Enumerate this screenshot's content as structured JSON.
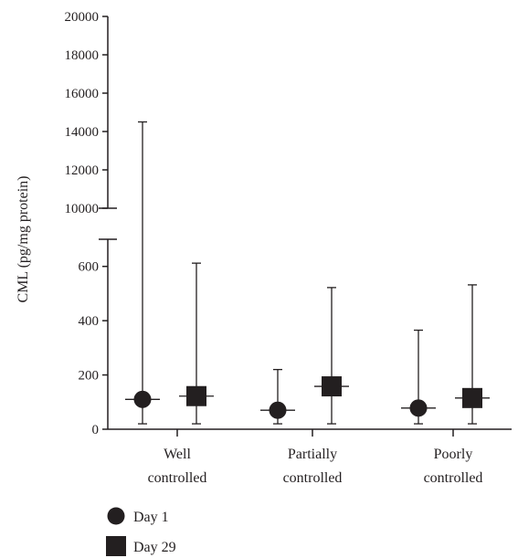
{
  "chart_data": {
    "type": "scatter",
    "title": "",
    "xlabel": "",
    "ylabel": "CML (pg/mg protein)",
    "y_axis_break": true,
    "lower_segment": {
      "ylim": [
        0,
        700
      ],
      "ticks": [
        "0",
        "200",
        "400",
        "600"
      ]
    },
    "upper_segment": {
      "ylim": [
        10000,
        20000
      ],
      "ticks": [
        "10000",
        "12000",
        "14000",
        "16000",
        "18000",
        "20000"
      ]
    },
    "categories": [
      "Well controlled",
      "Partially controlled",
      "Poorly controlled"
    ],
    "category_lines": [
      [
        "Well",
        "controlled"
      ],
      [
        "Partially",
        "controlled"
      ],
      [
        "Poorly",
        "controlled"
      ]
    ],
    "series": [
      {
        "name": "Day 1",
        "marker": "circle",
        "points": [
          {
            "median": 110,
            "low": 20,
            "high": 14500
          },
          {
            "median": 70,
            "low": 20,
            "high": 220
          },
          {
            "median": 78,
            "low": 20,
            "high": 365
          }
        ]
      },
      {
        "name": "Day 29",
        "marker": "square",
        "points": [
          {
            "median": 122,
            "low": 20,
            "high": 612
          },
          {
            "median": 158,
            "low": 20,
            "high": 522
          },
          {
            "median": 115,
            "low": 20,
            "high": 532
          }
        ]
      }
    ],
    "legend_position": "bottom-left",
    "grid": false
  },
  "colors": {
    "ink": "#231f20"
  }
}
